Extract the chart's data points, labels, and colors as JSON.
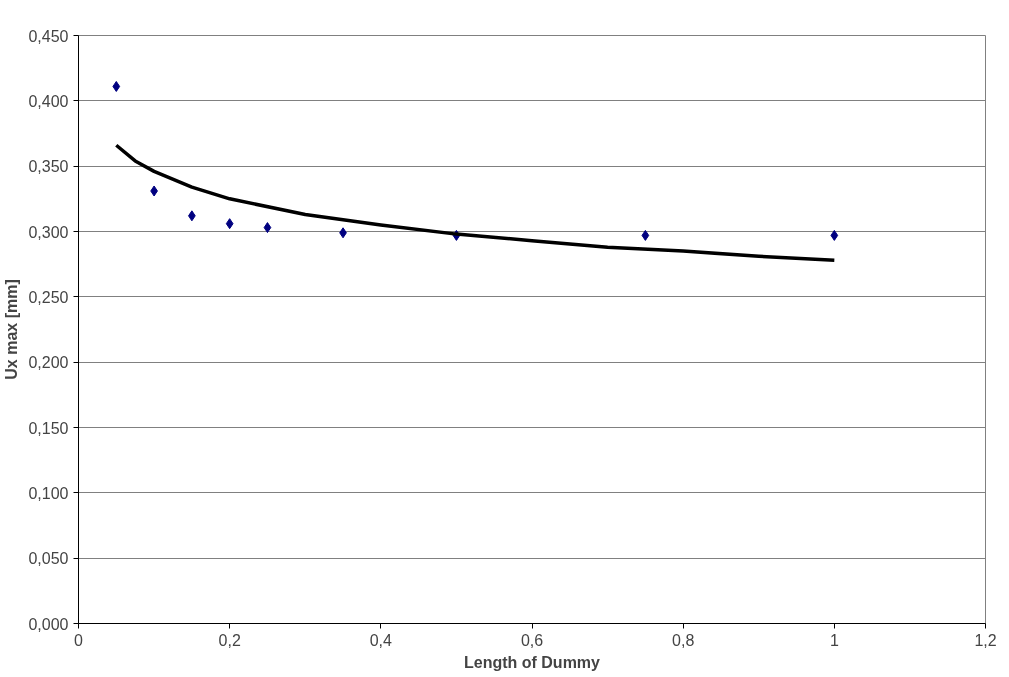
{
  "chart_data": {
    "type": "scatter",
    "xlabel": "Length of Dummy",
    "ylabel": "Ux max [mm]",
    "xlim": [
      0,
      1.2
    ],
    "ylim": [
      0,
      0.45
    ],
    "xticks": [
      0,
      {
        "value": 0.2,
        "label": "0,2"
      },
      {
        "value": 0.4,
        "label": "0,4"
      },
      {
        "value": 0.6,
        "label": "0,6"
      },
      {
        "value": 0.8,
        "label": "0,8"
      },
      1,
      {
        "value": 1.2,
        "label": "1,2"
      }
    ],
    "yticks": [
      {
        "value": 0,
        "label": "0,000"
      },
      {
        "value": 0.05,
        "label": "0,050"
      },
      {
        "value": 0.1,
        "label": "0,100"
      },
      {
        "value": 0.15,
        "label": "0,150"
      },
      {
        "value": 0.2,
        "label": "0,200"
      },
      {
        "value": 0.25,
        "label": "0,250"
      },
      {
        "value": 0.3,
        "label": "0,300"
      },
      {
        "value": 0.35,
        "label": "0,350"
      },
      {
        "value": 0.4,
        "label": "0,400"
      },
      {
        "value": 0.45,
        "label": "0,450"
      }
    ],
    "grid": "y",
    "series": [
      {
        "marker": "diamond",
        "color": "#000080",
        "x": [
          0.05,
          0.1,
          0.15,
          0.2,
          0.25,
          0.35,
          0.5,
          0.75,
          1.0
        ],
        "values": [
          0.411,
          0.331,
          0.312,
          0.306,
          0.303,
          0.299,
          0.297,
          0.297,
          0.297
        ]
      },
      {
        "type": "line",
        "marker": "none",
        "line_style": "solid",
        "color": "#000000",
        "x": [
          0.05,
          0.075,
          0.1,
          0.15,
          0.2,
          0.3,
          0.4,
          0.5,
          0.6,
          0.7,
          0.8,
          0.9,
          1.0
        ],
        "values": [
          0.366,
          0.354,
          0.346,
          0.334,
          0.325,
          0.313,
          0.305,
          0.298,
          0.293,
          0.288,
          0.285,
          0.281,
          0.278
        ]
      }
    ]
  }
}
